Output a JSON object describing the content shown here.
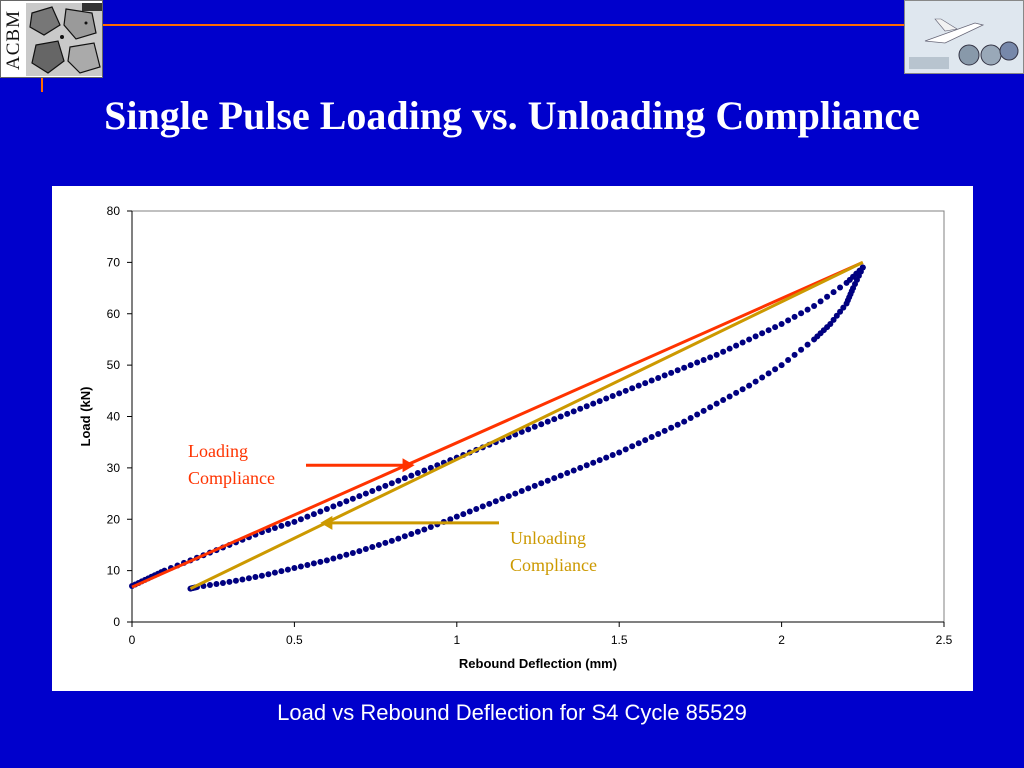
{
  "header": {
    "logo_left_text": "ACBM",
    "title": "Single Pulse Loading vs. Unloading Compliance"
  },
  "caption": "Load vs Rebound Deflection for S4 Cycle 85529",
  "colors": {
    "background": "#0000CC",
    "rule": "#FF6A00",
    "series": "#000080",
    "loading_line": "#FF3300",
    "unloading_line": "#CC9900"
  },
  "chart_data": {
    "type": "scatter",
    "xlabel": "Rebound Deflection (mm)",
    "ylabel": "Load (kN)",
    "xlim": [
      0,
      2.5
    ],
    "ylim": [
      0,
      80
    ],
    "x_ticks": [
      "0",
      "0.5",
      "1",
      "1.5",
      "2",
      "2.5"
    ],
    "y_ticks": [
      "0",
      "10",
      "20",
      "30",
      "40",
      "50",
      "60",
      "70",
      "80"
    ],
    "grid": false,
    "series": [
      {
        "loop_upper": [
          [
            0.0,
            7
          ],
          [
            0.05,
            8.5
          ],
          [
            0.1,
            10
          ],
          [
            0.2,
            12.5
          ],
          [
            0.3,
            15
          ],
          [
            0.4,
            17.5
          ],
          [
            0.5,
            19.5
          ],
          [
            0.6,
            22
          ],
          [
            0.7,
            24.5
          ],
          [
            0.8,
            27
          ],
          [
            0.9,
            29.5
          ],
          [
            1.0,
            32
          ],
          [
            1.1,
            34.5
          ],
          [
            1.2,
            37
          ],
          [
            1.3,
            39.5
          ],
          [
            1.4,
            42
          ],
          [
            1.5,
            44.5
          ],
          [
            1.6,
            47
          ],
          [
            1.7,
            49.5
          ],
          [
            1.8,
            52
          ],
          [
            1.9,
            55
          ],
          [
            2.0,
            58
          ],
          [
            2.1,
            61.5
          ],
          [
            2.2,
            66
          ],
          [
            2.25,
            69
          ]
        ],
        "loop_lower": [
          [
            2.25,
            69
          ],
          [
            2.22,
            65
          ],
          [
            2.2,
            62
          ],
          [
            2.15,
            58
          ],
          [
            2.1,
            55
          ],
          [
            2.0,
            50
          ],
          [
            1.9,
            46
          ],
          [
            1.8,
            42.5
          ],
          [
            1.7,
            39
          ],
          [
            1.6,
            36
          ],
          [
            1.5,
            33
          ],
          [
            1.4,
            30.5
          ],
          [
            1.3,
            28
          ],
          [
            1.2,
            25.5
          ],
          [
            1.1,
            23
          ],
          [
            1.0,
            20.5
          ],
          [
            0.9,
            18
          ],
          [
            0.8,
            15.8
          ],
          [
            0.7,
            13.8
          ],
          [
            0.6,
            12
          ],
          [
            0.5,
            10.5
          ],
          [
            0.4,
            9
          ],
          [
            0.3,
            7.8
          ],
          [
            0.2,
            6.8
          ],
          [
            0.18,
            6.5
          ]
        ]
      }
    ],
    "lines": [
      {
        "name": "Loading Compliance",
        "from": [
          0.0,
          6.8
        ],
        "to": [
          2.25,
          70
        ]
      },
      {
        "name": "Unloading Compliance",
        "from": [
          0.18,
          6.5
        ],
        "to": [
          2.25,
          70
        ]
      }
    ],
    "annotations": [
      {
        "text_line1": "Loading",
        "text_line2": "Compliance",
        "color": "#FF3300",
        "arrow_to": [
          0.87,
          30.5
        ]
      },
      {
        "text_line1": "Unloading",
        "text_line2": "Compliance",
        "color": "#CC9900",
        "arrow_to": [
          0.58,
          19.5
        ]
      }
    ]
  }
}
